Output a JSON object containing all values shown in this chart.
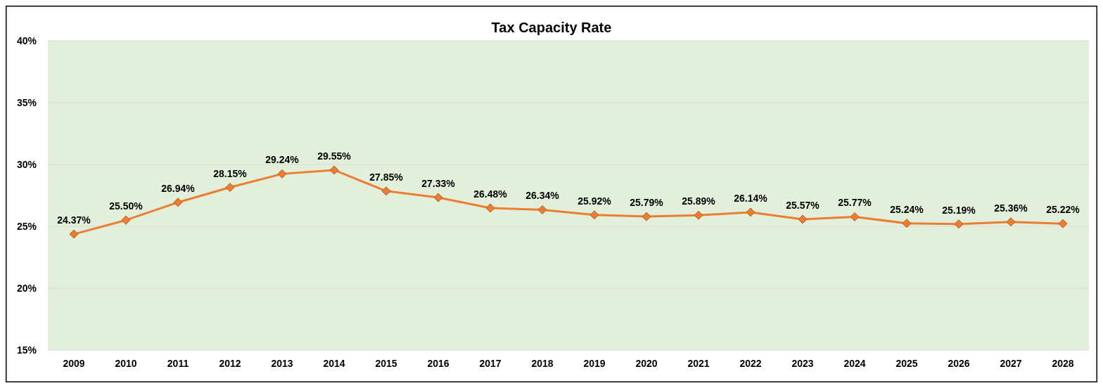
{
  "chart_data": {
    "type": "line",
    "title": "Tax Capacity Rate",
    "categories": [
      "2009",
      "2010",
      "2011",
      "2012",
      "2013",
      "2014",
      "2015",
      "2016",
      "2017",
      "2018",
      "2019",
      "2020",
      "2021",
      "2022",
      "2023",
      "2024",
      "2025",
      "2026",
      "2027",
      "2028"
    ],
    "series": [
      {
        "color": "#ed7d31",
        "values": [
          24.37,
          25.5,
          26.94,
          28.15,
          29.24,
          29.55,
          27.85,
          27.33,
          26.48,
          26.34,
          25.92,
          25.79,
          25.89,
          26.14,
          25.57,
          25.77,
          25.24,
          25.19,
          25.36,
          25.22
        ],
        "value_labels": [
          "24.37%",
          "25.50%",
          "26.94%",
          "28.15%",
          "29.24%",
          "29.55%",
          "27.85%",
          "27.33%",
          "26.48%",
          "26.34%",
          "25.92%",
          "25.79%",
          "25.89%",
          "26.14%",
          "25.57%",
          "25.77%",
          "25.24%",
          "25.19%",
          "25.36%",
          "25.22%"
        ]
      }
    ],
    "ylim": [
      15,
      40
    ],
    "yticks": [
      {
        "value": 15,
        "label": "15%"
      },
      {
        "value": 20,
        "label": "20%"
      },
      {
        "value": 25,
        "label": "25%"
      },
      {
        "value": 30,
        "label": "30%"
      },
      {
        "value": 35,
        "label": "35%"
      },
      {
        "value": 40,
        "label": "40%"
      }
    ],
    "grid": "y",
    "marker": "diamond",
    "line_style": "solid"
  }
}
